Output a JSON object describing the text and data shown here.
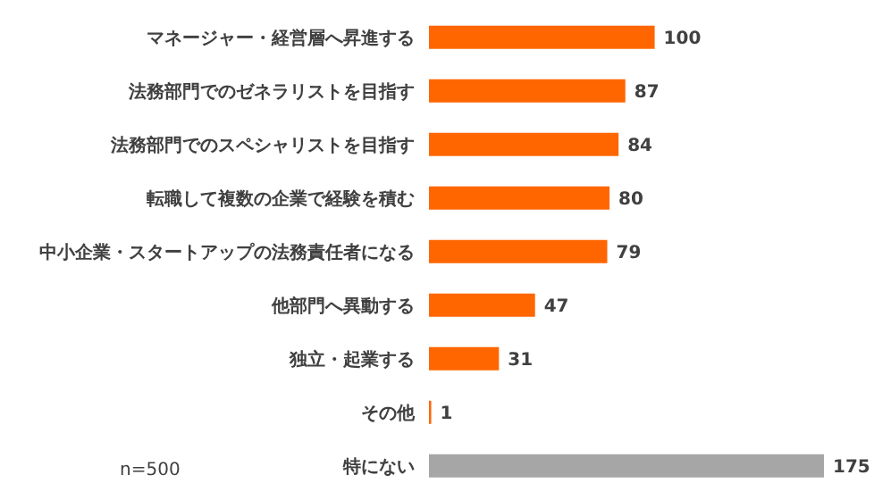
{
  "chart_data": {
    "type": "bar",
    "orientation": "horizontal",
    "categories": [
      "マネージャー・経営層へ昇進する",
      "法務部門でのゼネラリストを目指す",
      "法務部門でのスペシャリストを目指す",
      "転職して複数の企業で経験を積む",
      "中小企業・スタートアップの法務責任者になる",
      "他部門へ異動する",
      "独立・起業する",
      "その他",
      "特にない"
    ],
    "values": [
      100,
      87,
      84,
      80,
      79,
      47,
      31,
      1,
      175
    ],
    "colors": [
      "#ff6600",
      "#ff6600",
      "#ff6600",
      "#ff6600",
      "#ff6600",
      "#ff6600",
      "#ff6600",
      "#ff6600",
      "#a6a6a6"
    ],
    "data_labels": true,
    "annotations": [
      "n=500"
    ]
  }
}
